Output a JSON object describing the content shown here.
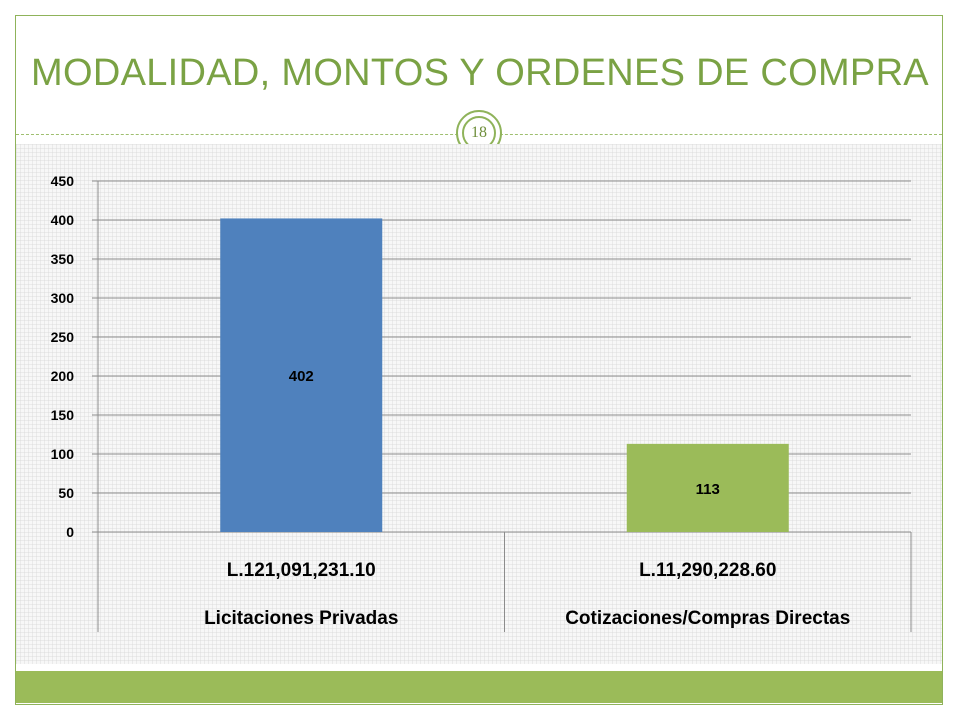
{
  "slide": {
    "title": "MODALIDAD, MONTOS Y ORDENES DE COMPRA",
    "page_number": "18",
    "accent_color": "#9bbb59"
  },
  "chart_data": {
    "type": "bar",
    "categories": [
      {
        "amount": "L.121,091,231.10",
        "label": "Licitaciones Privadas"
      },
      {
        "amount": "L.11,290,228.60",
        "label": "Cotizaciones/Compras Directas"
      }
    ],
    "values": [
      402,
      113
    ],
    "data_labels": [
      "402",
      "113"
    ],
    "bar_colors": [
      "#4f81bd",
      "#9bbb59"
    ],
    "ylim": [
      0,
      450
    ],
    "yticks": [
      0,
      50,
      100,
      150,
      200,
      250,
      300,
      350,
      400,
      450
    ],
    "grid": true,
    "legend": "none"
  }
}
